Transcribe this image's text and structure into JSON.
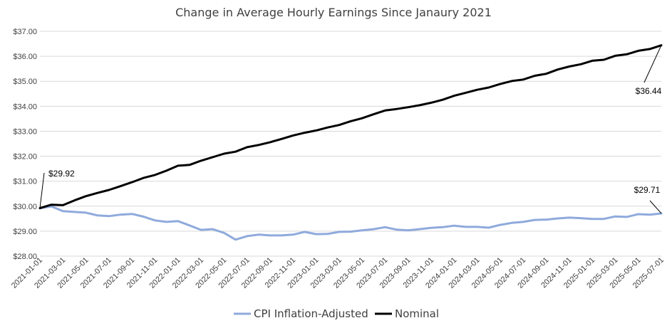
{
  "chart_data": {
    "type": "line",
    "title": "Change in Average Hourly Earnings Since Janaury 2021",
    "xlabel": "",
    "ylabel": "",
    "ylim": [
      28,
      37
    ],
    "y_ticks": [
      "$28.00",
      "$29.00",
      "$30.00",
      "$31.00",
      "$32.00",
      "$33.00",
      "$34.00",
      "$35.00",
      "$36.00",
      "$37.00"
    ],
    "y_tick_values": [
      28,
      29,
      30,
      31,
      32,
      33,
      34,
      35,
      36,
      37
    ],
    "x_tick_labels": [
      "2021-01-01",
      "2021-03-01",
      "2021-05-01",
      "2021-07-01",
      "2021-09-01",
      "2021-11-01",
      "2022-01-01",
      "2022-03-01",
      "2022-05-01",
      "2022-07-01",
      "2022-09-01",
      "2022-11-01",
      "2023-01-01",
      "2023-03-01",
      "2023-05-01",
      "2023-07-01",
      "2023-09-01",
      "2023-11-01",
      "2024-01-01",
      "2024-03-01",
      "2024-05-01",
      "2024-07-01",
      "2024-09-01",
      "2024-11-01",
      "2025-01-01",
      "2025-03-01",
      "2025-05-01",
      "2025-07-01"
    ],
    "grid": true,
    "legend_position": "bottom",
    "series": [
      {
        "name": "CPI Inflation-Adjusted",
        "color": "#8faadc",
        "values": [
          29.92,
          29.99,
          29.8,
          29.77,
          29.74,
          29.63,
          29.6,
          29.66,
          29.69,
          29.58,
          29.43,
          29.37,
          29.4,
          29.23,
          29.05,
          29.08,
          28.93,
          28.66,
          28.8,
          28.86,
          28.83,
          28.83,
          28.86,
          28.97,
          28.88,
          28.89,
          28.97,
          28.98,
          29.03,
          29.08,
          29.16,
          29.06,
          29.03,
          29.08,
          29.13,
          29.16,
          29.22,
          29.17,
          29.17,
          29.14,
          29.25,
          29.33,
          29.37,
          29.45,
          29.46,
          29.51,
          29.54,
          29.52,
          29.49,
          29.49,
          29.59,
          29.57,
          29.68,
          29.66,
          29.71
        ]
      },
      {
        "name": "Nominal",
        "color": "#000000",
        "values": [
          29.92,
          30.06,
          30.04,
          30.23,
          30.4,
          30.53,
          30.65,
          30.8,
          30.96,
          31.13,
          31.25,
          31.42,
          31.62,
          31.65,
          31.82,
          31.96,
          32.1,
          32.18,
          32.36,
          32.45,
          32.56,
          32.69,
          32.83,
          32.94,
          33.03,
          33.15,
          33.25,
          33.4,
          33.52,
          33.68,
          33.83,
          33.89,
          33.96,
          34.04,
          34.14,
          34.26,
          34.42,
          34.54,
          34.66,
          34.75,
          34.89,
          35.01,
          35.07,
          35.22,
          35.3,
          35.47,
          35.59,
          35.68,
          35.82,
          35.86,
          36.02,
          36.08,
          36.22,
          36.29,
          36.44
        ]
      }
    ],
    "annotations": [
      {
        "label": "$29.92",
        "series": 1,
        "index": 0
      },
      {
        "label": "$36.44",
        "series": 1,
        "index": 54
      },
      {
        "label": "$29.71",
        "series": 0,
        "index": 54
      }
    ]
  }
}
